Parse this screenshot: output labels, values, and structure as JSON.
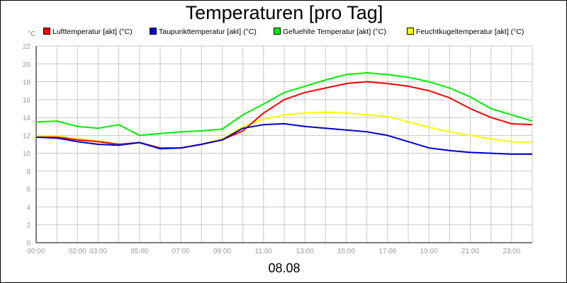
{
  "chart_data": {
    "type": "line",
    "title": "Temperaturen [pro Tag]",
    "ylabel": "°C",
    "xlabel": "08.08",
    "ylim": [
      0,
      22
    ],
    "y_ticks": [
      0,
      2,
      4,
      6,
      8,
      10,
      12,
      14,
      16,
      18,
      20,
      22
    ],
    "xlim": [
      0,
      24
    ],
    "x_tick_labels": [
      {
        "label": "00:00",
        "hour": 0
      },
      {
        "label": "02:00",
        "hour": 2
      },
      {
        "label": "03:00",
        "hour": 3
      },
      {
        "label": "05:00",
        "hour": 5
      },
      {
        "label": "07:00",
        "hour": 7
      },
      {
        "label": "09:00",
        "hour": 9
      },
      {
        "label": "11:00",
        "hour": 11
      },
      {
        "label": "13:00",
        "hour": 13
      },
      {
        "label": "15:00",
        "hour": 15
      },
      {
        "label": "17:00",
        "hour": 17
      },
      {
        "label": "19:00",
        "hour": 19
      },
      {
        "label": "21:00",
        "hour": 21
      },
      {
        "label": "23:00",
        "hour": 23
      }
    ],
    "x_hours": [
      0,
      1,
      2,
      3,
      4,
      5,
      6,
      7,
      8,
      9,
      10,
      11,
      12,
      13,
      14,
      15,
      16,
      17,
      18,
      19,
      20,
      21,
      22,
      23,
      24
    ],
    "series": [
      {
        "name": "Lufttemperatur [akt] (°C)",
        "color": "#ff0000",
        "values": [
          11.8,
          11.8,
          11.5,
          11.3,
          11.0,
          11.2,
          10.6,
          10.6,
          11.0,
          11.5,
          12.5,
          14.5,
          16.0,
          16.8,
          17.3,
          17.8,
          18.0,
          17.8,
          17.5,
          17.0,
          16.2,
          15.0,
          14.0,
          13.3,
          13.2
        ]
      },
      {
        "name": "Taupunkttemperatur [akt] (°C)",
        "color": "#0000cc",
        "values": [
          11.8,
          11.7,
          11.3,
          11.0,
          10.9,
          11.2,
          10.5,
          10.6,
          11.0,
          11.5,
          12.8,
          13.2,
          13.3,
          13.0,
          12.8,
          12.6,
          12.4,
          12.0,
          11.3,
          10.6,
          10.3,
          10.1,
          10.0,
          9.9,
          9.9
        ]
      },
      {
        "name": "Gefuehlte Temperatur [akt] (°C)",
        "color": "#00ee00",
        "values": [
          13.5,
          13.6,
          13.0,
          12.8,
          13.2,
          12.0,
          12.2,
          12.4,
          12.5,
          12.7,
          14.3,
          15.5,
          16.8,
          17.5,
          18.2,
          18.8,
          19.0,
          18.8,
          18.5,
          18.0,
          17.3,
          16.3,
          15.0,
          14.3,
          13.6
        ]
      },
      {
        "name": "Feuchtkugeltemperatur [akt] (°C)",
        "color": "#ffff00",
        "values": [
          11.9,
          11.9,
          11.6,
          11.4,
          11.0,
          11.2,
          10.6,
          10.6,
          11.0,
          11.6,
          13.0,
          13.8,
          14.3,
          14.5,
          14.6,
          14.5,
          14.3,
          14.1,
          13.5,
          12.9,
          12.4,
          12.0,
          11.6,
          11.3,
          11.2
        ]
      }
    ]
  }
}
